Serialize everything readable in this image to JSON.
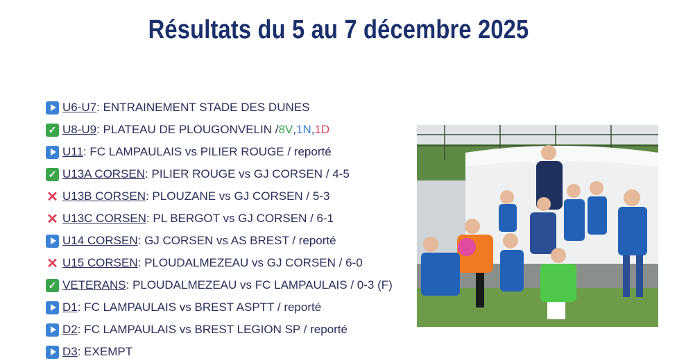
{
  "title": "Résultats du 5 au 7 décembre 2025",
  "results": [
    {
      "icon": "play-icon",
      "team": "U6-U7",
      "text": " : ENTRAINEMENT STADE DES DUNES"
    },
    {
      "icon": "check-icon",
      "team": "U8-U9",
      "text": " : PLATEAU DE PLOUGONVELIN / ",
      "extra": {
        "v": "8V",
        "sep1": ", ",
        "n": "1N",
        "sep2": " ,",
        "d": "1D"
      }
    },
    {
      "icon": "play-icon",
      "team": "U11",
      "text": " : FC LAMPAULAIS vs PILIER ROUGE / reporté"
    },
    {
      "icon": "check-icon",
      "team": "U13A CORSEN",
      "text": " : PILIER ROUGE vs GJ CORSEN / 4-5"
    },
    {
      "icon": "cross-icon",
      "team": "U13B CORSEN",
      "text": " : PLOUZANE vs GJ CORSEN / 5-3"
    },
    {
      "icon": "cross-icon",
      "team": "U13C CORSEN",
      "text": " : PL BERGOT vs GJ CORSEN / 6-1"
    },
    {
      "icon": "play-icon",
      "team": "U14 CORSEN",
      "text": " : GJ CORSEN vs AS BREST / reporté"
    },
    {
      "icon": "cross-icon",
      "team": "U15 CORSEN",
      "text": " : PLOUDALMEZEAU vs GJ CORSEN / 6-0"
    },
    {
      "icon": "check-icon",
      "team": "VETERANS",
      "text": " : PLOUDALMEZEAU vs FC LAMPAULAIS / 0-3 (F)"
    },
    {
      "icon": "play-icon",
      "team": "D1",
      "text": " : FC LAMPAULAIS vs BREST ASPTT / reporté"
    },
    {
      "icon": "play-icon",
      "team": "D2",
      "text": " : FC LAMPAULAIS vs BREST LEGION SP / reporté"
    },
    {
      "icon": "play-icon",
      "team": "D3",
      "text": " : EXEMPT"
    }
  ],
  "colors": {
    "title": "#1b2f6b",
    "win": "#3aa54a",
    "draw": "#3b82d6",
    "loss": "#e0405a"
  }
}
